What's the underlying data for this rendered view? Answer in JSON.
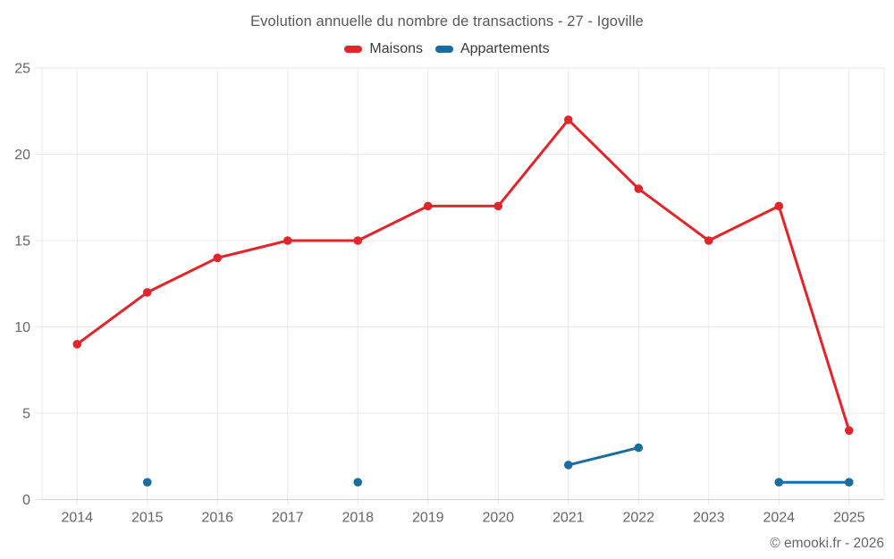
{
  "chart": {
    "title": "Evolution annuelle du nombre de transactions - 27 - Igoville",
    "copyright": "© emooki.fr - 2026"
  },
  "colors": {
    "maisons": "#e0252b",
    "appartements": "#1a6d9e",
    "gridline": "#e9e9e9",
    "axis_line": "#d6d6d6",
    "axis_label": "#666666"
  },
  "chart_data": {
    "type": "line",
    "title": "Evolution annuelle du nombre de transactions - 27 - Igoville",
    "categories": [
      "2014",
      "2015",
      "2016",
      "2017",
      "2018",
      "2019",
      "2020",
      "2021",
      "2022",
      "2023",
      "2024",
      "2025"
    ],
    "series": [
      {
        "name": "Maisons",
        "color": "#e0252b",
        "values": [
          9,
          12,
          14,
          15,
          15,
          17,
          17,
          22,
          18,
          15,
          17,
          4
        ]
      },
      {
        "name": "Appartements",
        "color": "#1a6d9e",
        "values": [
          null,
          1,
          null,
          null,
          1,
          null,
          null,
          2,
          3,
          null,
          1,
          1
        ]
      }
    ],
    "xlabel": "",
    "ylabel": "",
    "ylim": [
      0,
      25
    ],
    "yticks": [
      0,
      5,
      10,
      15,
      20,
      25
    ],
    "grid": true,
    "legend_position": "top"
  }
}
